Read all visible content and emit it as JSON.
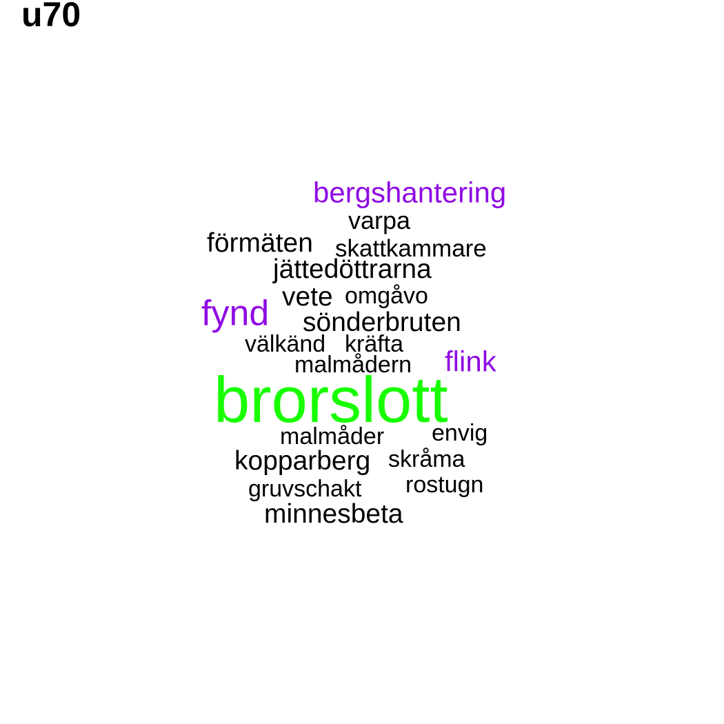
{
  "title": "u70",
  "colors": {
    "black": "#000000",
    "purple": "#8f0be3",
    "green": "#18ff00"
  },
  "words": [
    {
      "text": "bergshantering",
      "color": "#8f0be3"
    },
    {
      "text": "varpa",
      "color": "#000000"
    },
    {
      "text": "förmäten",
      "color": "#000000"
    },
    {
      "text": "skattkammare",
      "color": "#000000"
    },
    {
      "text": "jättedöttrarna",
      "color": "#000000"
    },
    {
      "text": "vete",
      "color": "#000000"
    },
    {
      "text": "omgåvo",
      "color": "#000000"
    },
    {
      "text": "fynd",
      "color": "#8f0be3"
    },
    {
      "text": "sönderbruten",
      "color": "#000000"
    },
    {
      "text": "välkänd",
      "color": "#000000"
    },
    {
      "text": "kräfta",
      "color": "#000000"
    },
    {
      "text": "malmådern",
      "color": "#000000"
    },
    {
      "text": "flink",
      "color": "#8f0be3"
    },
    {
      "text": "brorslott",
      "color": "#18ff00"
    },
    {
      "text": "malmåder",
      "color": "#000000"
    },
    {
      "text": "envig",
      "color": "#000000"
    },
    {
      "text": "kopparberg",
      "color": "#000000"
    },
    {
      "text": "skråma",
      "color": "#000000"
    },
    {
      "text": "gruvschakt",
      "color": "#000000"
    },
    {
      "text": "rostugn",
      "color": "#000000"
    },
    {
      "text": "minnesbeta",
      "color": "#000000"
    }
  ]
}
